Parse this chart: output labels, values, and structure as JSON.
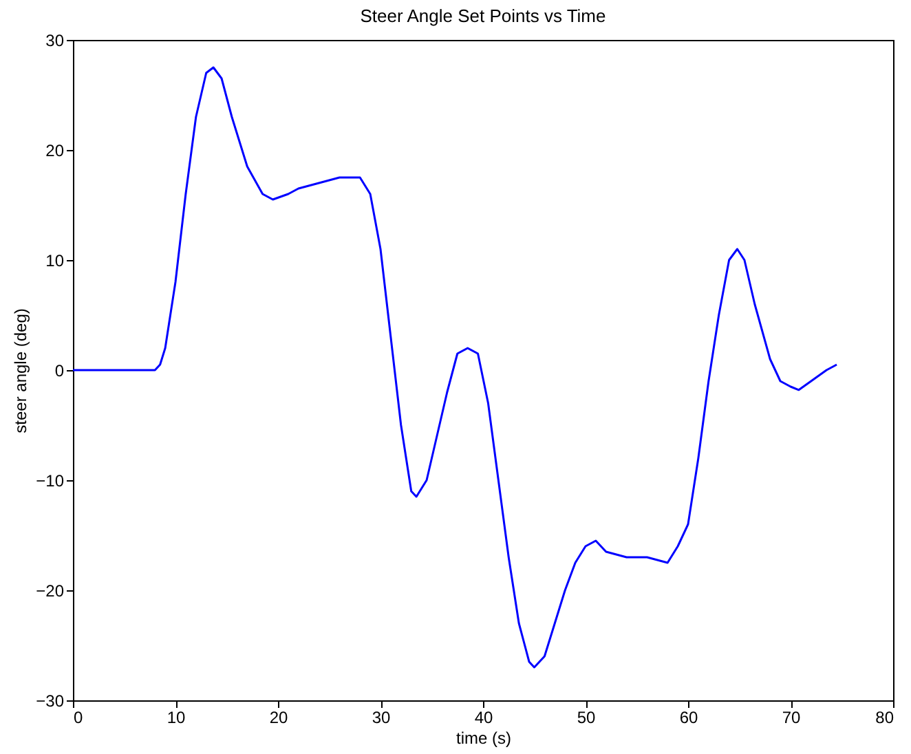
{
  "chart_data": {
    "type": "line",
    "title": "Steer Angle Set Points vs Time",
    "xlabel": "time (s)",
    "ylabel": "steer angle (deg)",
    "xlim": [
      0,
      80
    ],
    "xticks": [
      0,
      10,
      20,
      30,
      40,
      50,
      60,
      70,
      80
    ],
    "ylim": [
      -30,
      30
    ],
    "yticks": [
      -30,
      -20,
      -10,
      0,
      10,
      20,
      30
    ],
    "grid": false,
    "marker": "none",
    "line_style": "solid",
    "series": [
      {
        "color": "#0000ff",
        "x": [
          0,
          8,
          8.5,
          9,
          10,
          11,
          12,
          13,
          13.7,
          14.5,
          15.5,
          17,
          18.5,
          19.5,
          21,
          22,
          24,
          26,
          28,
          29,
          30,
          31,
          32,
          33,
          33.5,
          34.5,
          35.5,
          36.5,
          37.5,
          38.5,
          39.5,
          40.5,
          41.5,
          42.5,
          43.5,
          44.5,
          45,
          46,
          47,
          48,
          49,
          50,
          51,
          52,
          54,
          56,
          58,
          59,
          60,
          61,
          62,
          63,
          64,
          64.8,
          65.5,
          66.5,
          68,
          69,
          70,
          70.8,
          72,
          73.5,
          74.5
        ],
        "values": [
          0,
          0,
          0.5,
          2,
          8,
          16,
          23,
          27,
          27.5,
          26.5,
          23,
          18.5,
          16,
          15.5,
          16,
          16.5,
          17,
          17.5,
          17.5,
          16,
          11,
          3,
          -5,
          -11,
          -11.5,
          -10,
          -6,
          -2,
          1.5,
          2,
          1.5,
          -3,
          -10,
          -17,
          -23,
          -26.5,
          -27,
          -26,
          -23,
          -20,
          -17.5,
          -16,
          -15.5,
          -16.5,
          -17,
          -17,
          -17.5,
          -16,
          -14,
          -8,
          -1,
          5,
          10,
          11,
          10,
          6,
          1,
          -1,
          -1.5,
          -1.8,
          -1,
          0,
          0.5
        ]
      }
    ]
  }
}
